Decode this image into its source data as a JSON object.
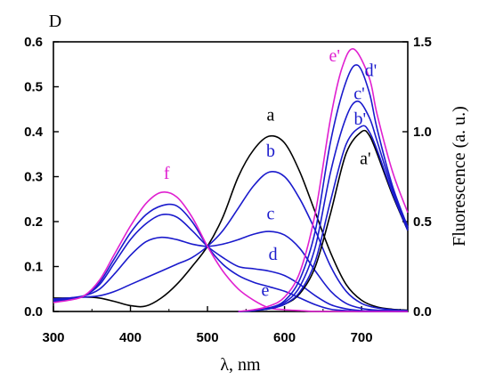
{
  "chart_data": {
    "type": "line",
    "xlabel": "λ, nm",
    "ylabel_left": "D",
    "ylabel_right": "Fluorescence (a. u.)",
    "xlim": [
      300,
      760
    ],
    "ylim_left": [
      0,
      0.6
    ],
    "ylim_right": [
      0,
      1.5
    ],
    "x_ticks": [
      "300",
      "400",
      "500",
      "600",
      "700"
    ],
    "y_ticks_left": [
      "0.0",
      "0.1",
      "0.2",
      "0.3",
      "0.4",
      "0.5",
      "0.6"
    ],
    "y_ticks_right": [
      "0.0",
      "0.5",
      "1.0",
      "1.5"
    ],
    "grid": false,
    "absorption_series": [
      {
        "name": "a",
        "color": "#000000",
        "x": [
          300,
          320,
          340,
          360,
          380,
          400,
          420,
          440,
          460,
          480,
          500,
          520,
          540,
          560,
          580,
          600,
          620,
          640,
          660,
          680,
          700,
          720,
          740,
          760
        ],
        "y": [
          0.03,
          0.03,
          0.032,
          0.03,
          0.022,
          0.013,
          0.012,
          0.03,
          0.06,
          0.1,
          0.145,
          0.21,
          0.3,
          0.36,
          0.39,
          0.375,
          0.31,
          0.22,
          0.13,
          0.06,
          0.025,
          0.01,
          0.005,
          0.003
        ]
      },
      {
        "name": "b",
        "color": "#1a1acc",
        "x": [
          300,
          320,
          340,
          360,
          380,
          400,
          420,
          440,
          460,
          480,
          500,
          520,
          540,
          560,
          580,
          600,
          620,
          640,
          660,
          680,
          700,
          720,
          740,
          760
        ],
        "y": [
          0.028,
          0.03,
          0.032,
          0.035,
          0.045,
          0.06,
          0.075,
          0.09,
          0.105,
          0.12,
          0.145,
          0.18,
          0.23,
          0.28,
          0.31,
          0.3,
          0.25,
          0.18,
          0.1,
          0.045,
          0.018,
          0.008,
          0.004,
          0.002
        ]
      },
      {
        "name": "c",
        "color": "#1a1acc",
        "x": [
          300,
          320,
          340,
          360,
          380,
          400,
          420,
          440,
          460,
          480,
          500,
          520,
          540,
          560,
          580,
          600,
          620,
          640,
          660,
          680,
          700,
          720,
          740,
          760
        ],
        "y": [
          0.027,
          0.03,
          0.035,
          0.05,
          0.085,
          0.125,
          0.155,
          0.165,
          0.16,
          0.15,
          0.145,
          0.15,
          0.16,
          0.172,
          0.178,
          0.17,
          0.14,
          0.09,
          0.045,
          0.018,
          0.007,
          0.003,
          0.002,
          0.001
        ]
      },
      {
        "name": "d",
        "color": "#1a1acc",
        "x": [
          300,
          320,
          340,
          360,
          380,
          400,
          420,
          440,
          460,
          480,
          500,
          520,
          540,
          560,
          580,
          600,
          620,
          640,
          660,
          680,
          700,
          720,
          740,
          760
        ],
        "y": [
          0.025,
          0.028,
          0.035,
          0.06,
          0.11,
          0.16,
          0.195,
          0.215,
          0.21,
          0.18,
          0.145,
          0.12,
          0.1,
          0.095,
          0.09,
          0.08,
          0.06,
          0.035,
          0.015,
          0.006,
          0.002,
          0.001,
          0.0,
          0.0
        ]
      },
      {
        "name": "e",
        "color": "#1a1acc",
        "x": [
          300,
          320,
          340,
          360,
          380,
          400,
          420,
          440,
          460,
          480,
          500,
          520,
          540,
          560,
          580,
          600,
          620,
          640,
          660,
          680,
          700,
          720,
          740,
          760
        ],
        "y": [
          0.023,
          0.026,
          0.035,
          0.065,
          0.12,
          0.175,
          0.215,
          0.235,
          0.235,
          0.2,
          0.145,
          0.105,
          0.08,
          0.065,
          0.055,
          0.045,
          0.03,
          0.015,
          0.005,
          0.002,
          0.0,
          0.0,
          0.0,
          0.0
        ]
      },
      {
        "name": "f",
        "color": "#e020d0",
        "x": [
          300,
          320,
          340,
          360,
          380,
          400,
          420,
          440,
          460,
          480,
          500,
          520,
          540,
          560,
          580,
          600,
          620,
          640,
          660,
          680,
          700,
          720,
          740,
          760
        ],
        "y": [
          0.02,
          0.025,
          0.035,
          0.07,
          0.13,
          0.19,
          0.24,
          0.265,
          0.255,
          0.21,
          0.145,
          0.09,
          0.05,
          0.025,
          0.008,
          0.004,
          0.002,
          0.0,
          0.0,
          0.0,
          0.0,
          0.0,
          0.0,
          0.0
        ]
      }
    ],
    "fluorescence_series": [
      {
        "name": "a'",
        "color": "#000000",
        "x": [
          540,
          560,
          580,
          600,
          620,
          640,
          660,
          680,
          700,
          710,
          720,
          740,
          760
        ],
        "y": [
          0.0,
          0.005,
          0.015,
          0.04,
          0.1,
          0.25,
          0.55,
          0.88,
          1.0,
          0.98,
          0.88,
          0.65,
          0.45
        ]
      },
      {
        "name": "b'",
        "color": "#1a1acc",
        "x": [
          540,
          560,
          580,
          600,
          620,
          640,
          660,
          680,
          700,
          710,
          720,
          740,
          760
        ],
        "y": [
          0.0,
          0.005,
          0.015,
          0.04,
          0.11,
          0.28,
          0.62,
          0.93,
          1.03,
          1.0,
          0.9,
          0.66,
          0.45
        ]
      },
      {
        "name": "c'",
        "color": "#1a1acc",
        "x": [
          540,
          560,
          580,
          600,
          620,
          640,
          660,
          680,
          695,
          710,
          720,
          740,
          760
        ],
        "y": [
          0.0,
          0.005,
          0.02,
          0.05,
          0.14,
          0.36,
          0.78,
          1.08,
          1.17,
          1.08,
          0.95,
          0.68,
          0.46
        ]
      },
      {
        "name": "d'",
        "color": "#1a1acc",
        "x": [
          540,
          560,
          580,
          600,
          620,
          640,
          660,
          680,
          695,
          710,
          720,
          740,
          760
        ],
        "y": [
          0.0,
          0.005,
          0.02,
          0.06,
          0.18,
          0.45,
          0.95,
          1.28,
          1.37,
          1.22,
          1.02,
          0.7,
          0.47
        ]
      },
      {
        "name": "e'",
        "color": "#e020d0",
        "x": [
          540,
          560,
          580,
          600,
          620,
          640,
          660,
          675,
          690,
          710,
          720,
          740,
          760
        ],
        "y": [
          0.0,
          0.01,
          0.03,
          0.08,
          0.22,
          0.55,
          1.08,
          1.36,
          1.46,
          1.3,
          1.1,
          0.78,
          0.55
        ]
      }
    ],
    "curve_labels": [
      {
        "text": "a",
        "color": "#000000",
        "x": 582,
        "y": 0.425,
        "axis": "left"
      },
      {
        "text": "b",
        "color": "#1a1acc",
        "x": 582,
        "y": 0.345,
        "axis": "left"
      },
      {
        "text": "c",
        "color": "#1a1acc",
        "x": 582,
        "y": 0.205,
        "axis": "left"
      },
      {
        "text": "d",
        "color": "#1a1acc",
        "x": 585,
        "y": 0.115,
        "axis": "left"
      },
      {
        "text": "e",
        "color": "#1a1acc",
        "x": 575,
        "y": 0.035,
        "axis": "left"
      },
      {
        "text": "f",
        "color": "#e020d0",
        "x": 447,
        "y": 0.295,
        "axis": "left"
      },
      {
        "text": "e'",
        "color": "#e020d0",
        "x": 665,
        "y": 1.39,
        "axis": "right"
      },
      {
        "text": "d'",
        "color": "#1a1acc",
        "x": 712,
        "y": 1.31,
        "axis": "right"
      },
      {
        "text": "c'",
        "color": "#1a1acc",
        "x": 697,
        "y": 1.18,
        "axis": "right"
      },
      {
        "text": "b'",
        "color": "#1a1acc",
        "x": 698,
        "y": 1.04,
        "axis": "right"
      },
      {
        "text": "a'",
        "color": "#000000",
        "x": 705,
        "y": 0.82,
        "axis": "right"
      }
    ]
  }
}
